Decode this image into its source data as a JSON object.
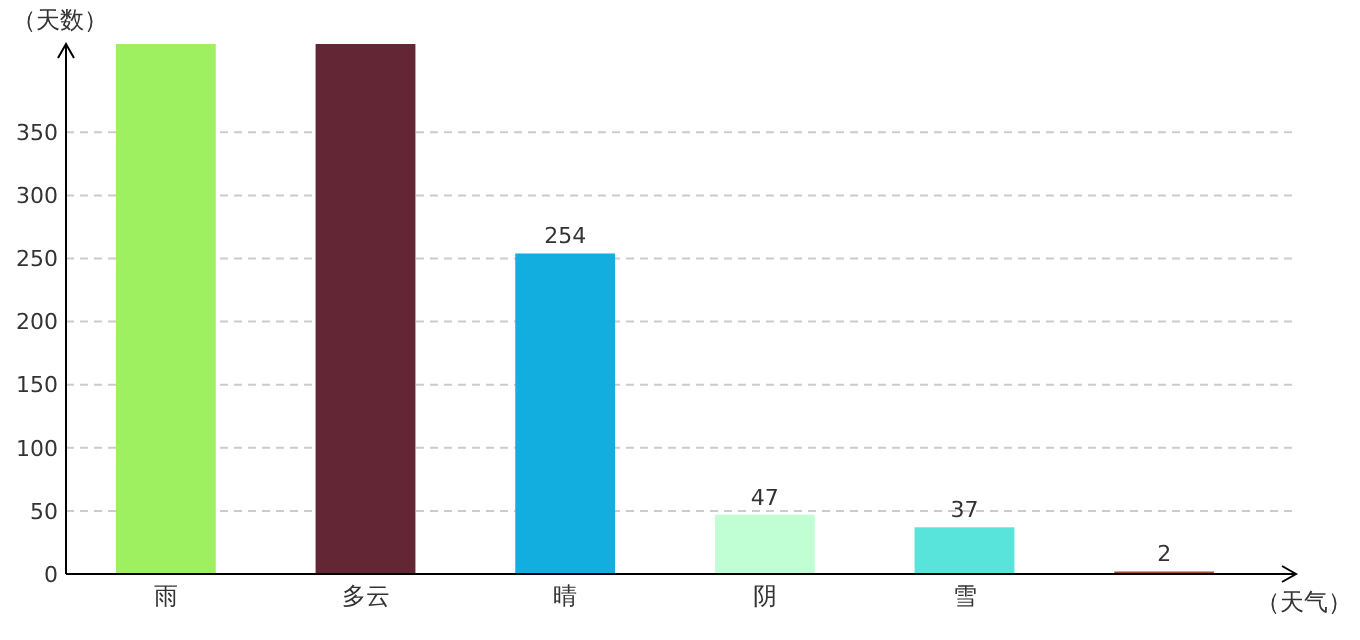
{
  "chart_data": {
    "type": "bar",
    "xlabel": "（天气）",
    "ylabel": "（天数）",
    "categories": [
      "雨",
      "多云",
      "晴",
      "阴",
      "雪",
      null
    ],
    "values": [
      420,
      420,
      254,
      47,
      37,
      2
    ],
    "colors": [
      "#9ff060",
      "#632634",
      "#12aee0",
      "#bfffd3",
      "#58e4da",
      "#a0522d"
    ],
    "value_labels": [
      null,
      null,
      "254",
      "47",
      "37",
      "2"
    ],
    "ylim": [
      0,
      420
    ],
    "yticks": [
      0,
      50,
      100,
      150,
      200,
      250,
      300,
      350
    ],
    "grid": "y"
  }
}
